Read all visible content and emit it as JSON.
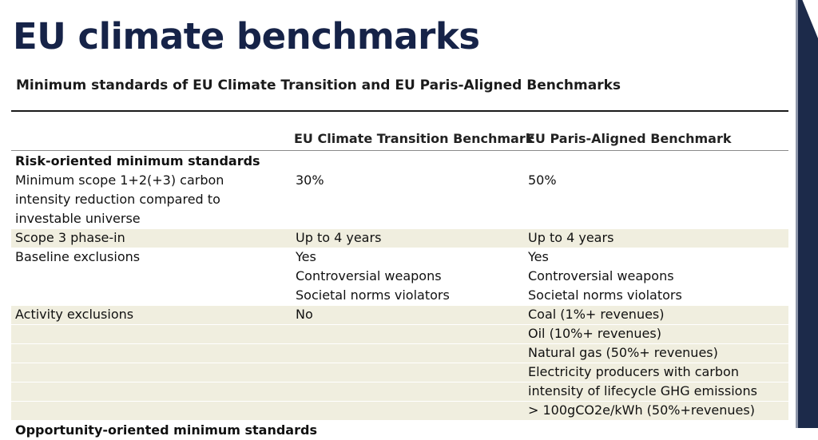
{
  "title": "EU climate benchmarks",
  "subtitle": "Minimum standards of EU Climate Transition and EU Paris-Aligned Benchmarks",
  "columns": {
    "ctb": "EU Climate Transition Benchmark",
    "pab": "EU Paris-Aligned Benchmark"
  },
  "sections": {
    "risk": "Risk-oriented minimum standards",
    "opportunity": "Opportunity-oriented minimum standards"
  },
  "rows": {
    "carbon": {
      "label_lines": [
        "Minimum scope 1+2(+3) carbon",
        "intensity reduction compared to",
        "investable universe"
      ],
      "ctb": "30%",
      "pab": "50%"
    },
    "scope3": {
      "label": "Scope 3 phase-in",
      "ctb": "Up to 4 years",
      "pab": "Up to 4 years"
    },
    "baseline": {
      "label": "Baseline exclusions",
      "ctb_lines": [
        "Yes",
        "Controversial weapons",
        "Societal norms violators"
      ],
      "pab_lines": [
        "Yes",
        "Controversial weapons",
        "Societal norms violators"
      ]
    },
    "activity": {
      "label": "Activity exclusions",
      "ctb": "No",
      "pab_lines": [
        "Coal (1%+ revenues)",
        "Oil (10%+ revenues)",
        "Natural gas (50%+ revenues)",
        "Electricity producers with carbon",
        "intensity of lifecycle GHG emissions",
        "> 100gCO2e/kWh (50%+revenues)"
      ]
    }
  },
  "colors": {
    "title": "#162348",
    "shade": "#f0eedf",
    "spine": "#1c2a4a"
  }
}
